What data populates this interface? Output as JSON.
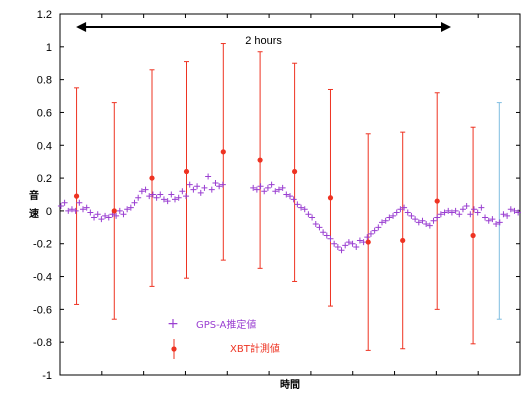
{
  "chart_data": {
    "type": "scatter",
    "title": "",
    "xlabel": "時間",
    "ylabel": "音速",
    "ylim": [
      -1,
      1.2
    ],
    "yticks": [
      -1,
      -0.8,
      -0.6,
      -0.4,
      -0.2,
      0,
      0.2,
      0.4,
      0.6,
      0.8,
      1,
      1.2
    ],
    "xlim": [
      0,
      100
    ],
    "grid": false,
    "legend_placement": "bottom-left",
    "annotation": {
      "text": "2 hours",
      "x_start": 3.5,
      "x_end": 85
    },
    "series": [
      {
        "name": "GPS-A推定値",
        "marker": "plus",
        "color": "#9a3fd1",
        "x": [
          0.2,
          1,
          1.8,
          2.6,
          3.4,
          4.2,
          5,
          5.8,
          6.6,
          7.4,
          8.2,
          9,
          9.8,
          10.6,
          11.4,
          12.2,
          13,
          13.8,
          14.6,
          15.4,
          16.2,
          17,
          17.8,
          18.6,
          19.4,
          20.2,
          21,
          21.8,
          22.6,
          23.4,
          24.2,
          25,
          25.8,
          26.6,
          27.4,
          28.2,
          29,
          29.8,
          30.6,
          31.4,
          32.2,
          33,
          33.8,
          34.6,
          35.4,
          42,
          42.8,
          43.6,
          44.4,
          45.2,
          46,
          46.8,
          47.6,
          48.4,
          49.2,
          50,
          50.8,
          51.6,
          52.4,
          53.2,
          54,
          54.8,
          55.6,
          56.4,
          57.2,
          58,
          58.8,
          59.6,
          60.4,
          61.2,
          62,
          62.8,
          63.6,
          64.4,
          65.2,
          66,
          66.8,
          67.6,
          68.4,
          69.2,
          70,
          70.8,
          71.6,
          72.4,
          73.2,
          74,
          74.8,
          75.6,
          76.4,
          77.2,
          78,
          78.8,
          79.6,
          80.4,
          81.2,
          82,
          82.8,
          83.6,
          84.4,
          85.2,
          86,
          86.8,
          87.6,
          88.4,
          89.2,
          90,
          90.8,
          91.6,
          92.4,
          93.2,
          94,
          94.8,
          95.6,
          96.4,
          97.2,
          98,
          98.8,
          99.6
        ],
        "y": [
          0.03,
          0.05,
          0,
          0.01,
          0,
          0.05,
          0.01,
          0.02,
          -0.01,
          -0.04,
          -0.02,
          -0.05,
          -0.03,
          -0.04,
          -0.02,
          -0.03,
          0,
          -0.02,
          0.01,
          0.02,
          0.05,
          0.08,
          0.12,
          0.13,
          0.09,
          0.1,
          0.08,
          0.1,
          0.07,
          0.06,
          0.1,
          0.07,
          0.08,
          0.12,
          0.09,
          0.16,
          0.13,
          0.15,
          0.11,
          0.14,
          0.21,
          0.13,
          0.17,
          0.15,
          0.16,
          0.14,
          0.13,
          0.15,
          0.12,
          0.14,
          0.16,
          0.12,
          0.13,
          0.14,
          0.1,
          0.09,
          0.07,
          0.04,
          0.02,
          0.01,
          -0.02,
          -0.04,
          -0.08,
          -0.1,
          -0.13,
          -0.15,
          -0.17,
          -0.2,
          -0.22,
          -0.24,
          -0.21,
          -0.19,
          -0.2,
          -0.22,
          -0.18,
          -0.19,
          -0.16,
          -0.14,
          -0.12,
          -0.1,
          -0.07,
          -0.06,
          -0.04,
          -0.03,
          -0.01,
          0.01,
          0.02,
          -0.01,
          -0.03,
          -0.05,
          -0.07,
          -0.06,
          -0.08,
          -0.09,
          -0.06,
          -0.04,
          -0.02,
          -0.01,
          0,
          -0.01,
          0,
          -0.02,
          0.01,
          0.03,
          -0.02,
          0.01,
          -0.01,
          0.02,
          -0.04,
          -0.06,
          -0.05,
          -0.08,
          -0.07,
          -0.02,
          -0.03,
          0.01,
          0,
          -0.01
        ]
      },
      {
        "name": "XBT計測値",
        "marker": "dot-errorbar",
        "color": "#ee3322",
        "x": [
          3.6,
          11.8,
          20,
          27.5,
          35.5,
          43.5,
          51,
          58.8,
          67,
          74.5,
          82,
          89.8
        ],
        "y": [
          0.09,
          0,
          0.2,
          0.24,
          0.36,
          0.31,
          0.24,
          0.08,
          -0.19,
          -0.18,
          0.06,
          -0.15
        ],
        "yerr_low": [
          -0.57,
          -0.66,
          -0.46,
          -0.41,
          -0.3,
          -0.35,
          -0.43,
          -0.58,
          -0.85,
          -0.84,
          -0.6,
          -0.81
        ],
        "yerr_high": [
          0.75,
          0.66,
          0.86,
          0.91,
          1.02,
          0.97,
          0.9,
          0.74,
          0.47,
          0.48,
          0.72,
          0.51
        ]
      }
    ],
    "extra_errorbar": {
      "color": "#7fbde0",
      "x": 95.5,
      "low": -0.66,
      "high": 0.66
    }
  }
}
